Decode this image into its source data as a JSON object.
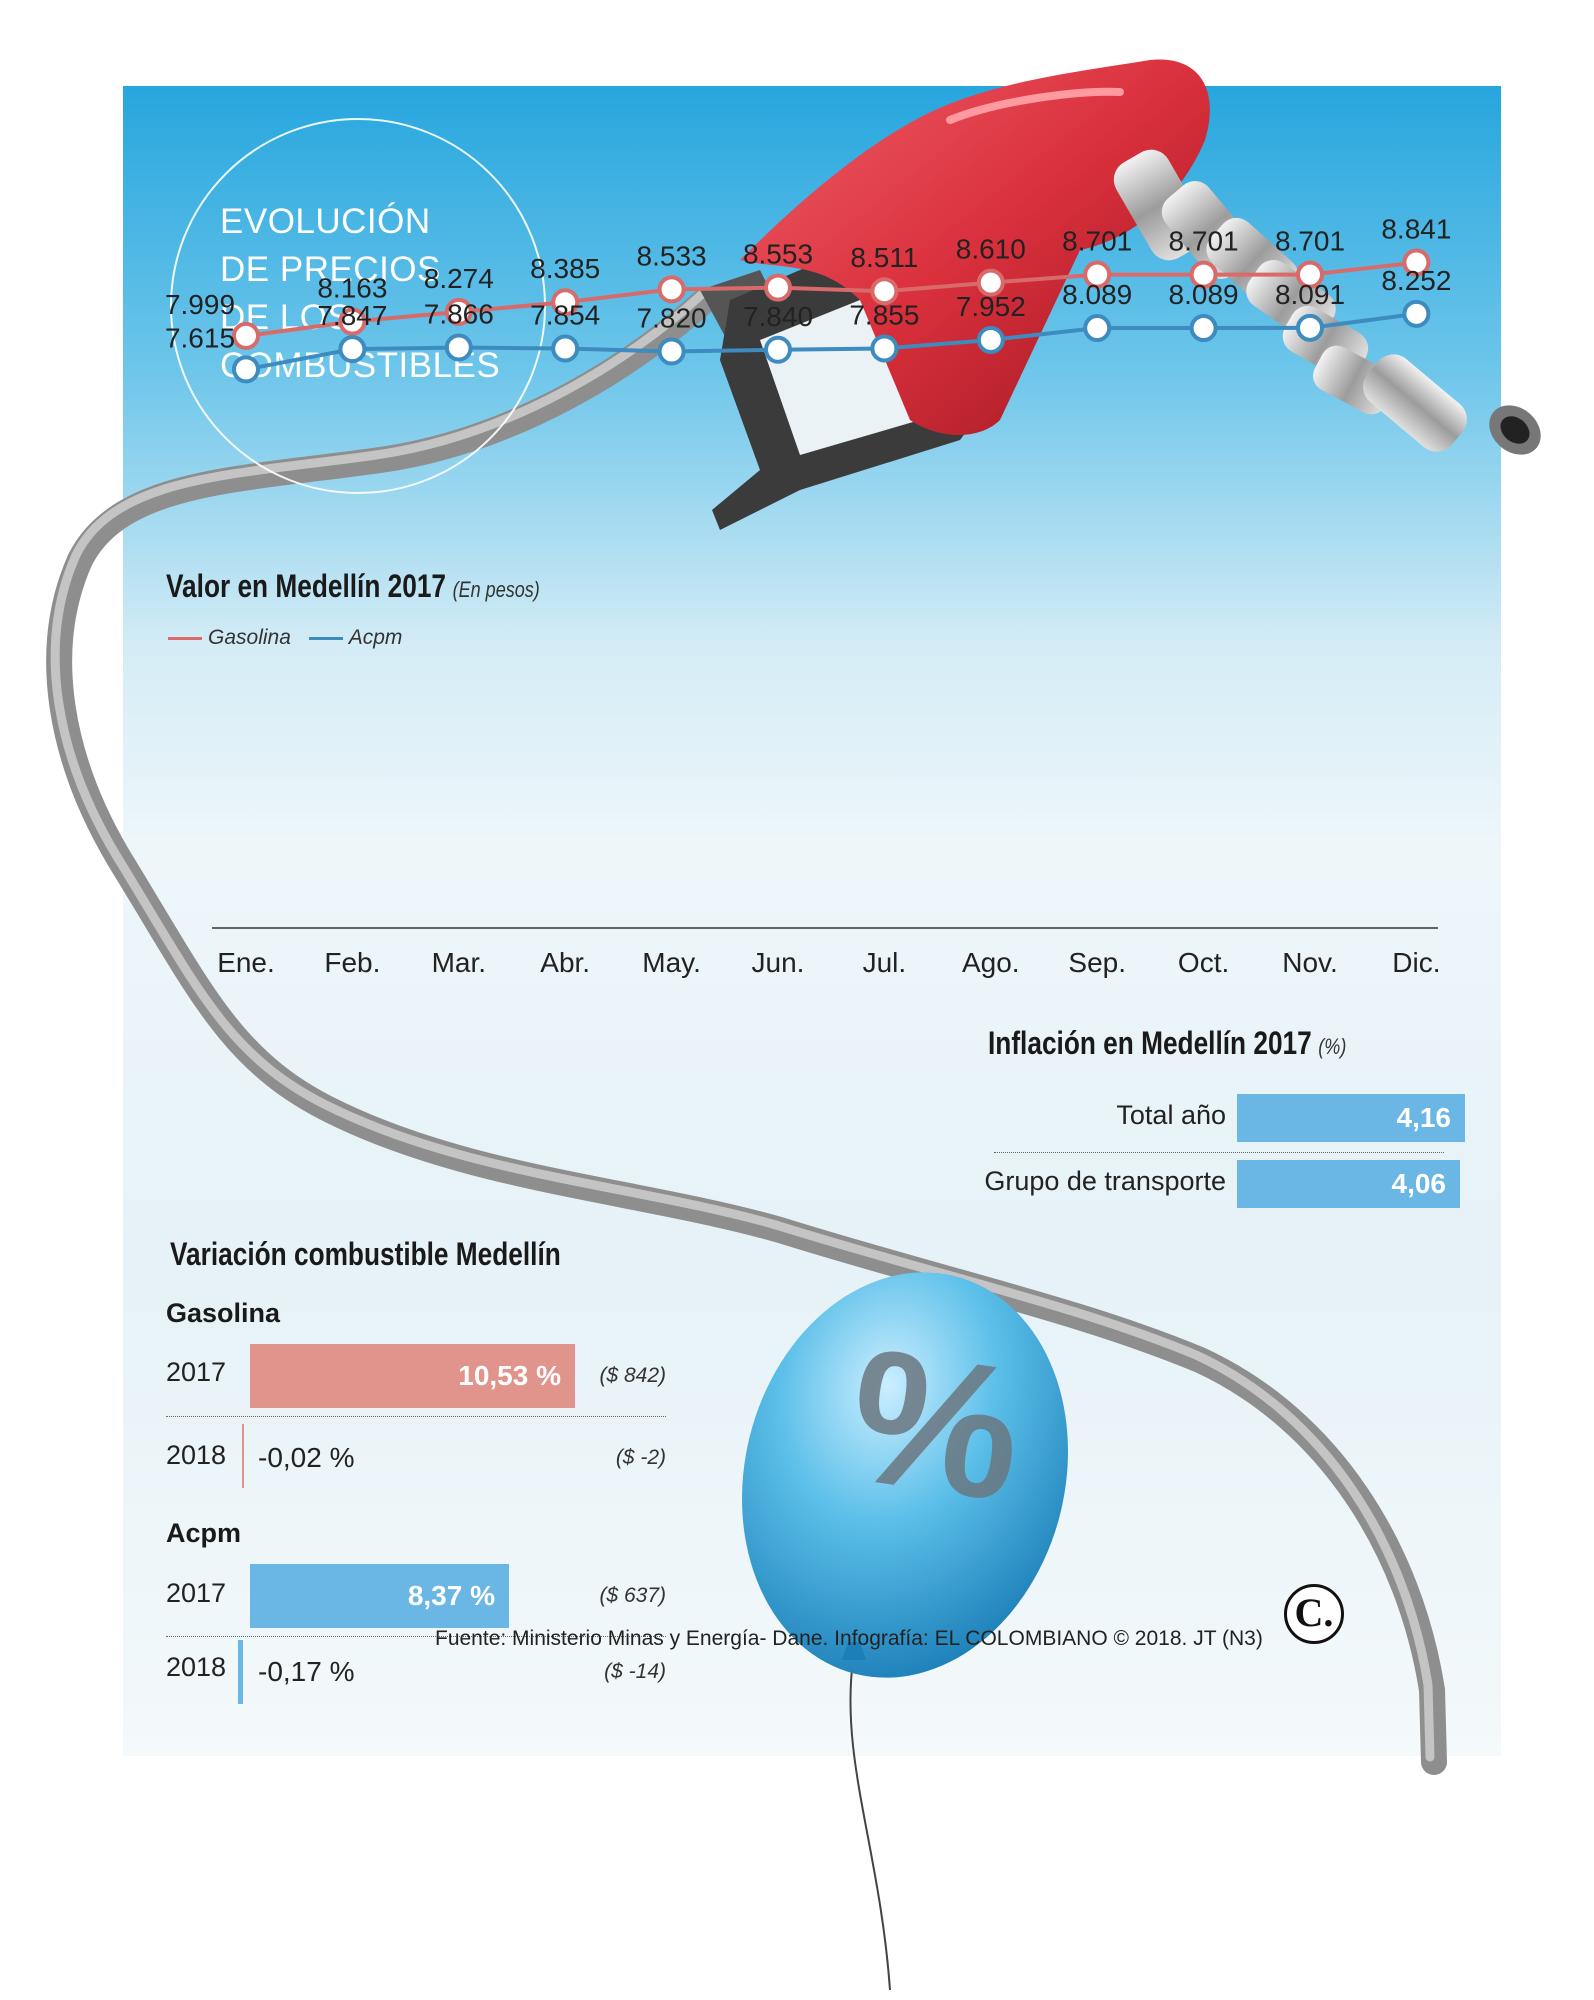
{
  "title_lines": [
    "EVOLUCIÓN",
    "DE PRECIOS",
    "DE LOS",
    "COMBUSTIBLES"
  ],
  "colors": {
    "gasolina": "#d96a6a",
    "acpm": "#3d8bbf",
    "gas_bar": "#e0948b",
    "acpm_bar": "#6ab6e4",
    "infl_bar": "#6ab6e4"
  },
  "chart_data": {
    "type": "line",
    "title": "Valor en Medellín 2017",
    "subtitle": "(En pesos)",
    "categories": [
      "Ene.",
      "Feb.",
      "Mar.",
      "Abr.",
      "May.",
      "Jun.",
      "Jul.",
      "Ago.",
      "Sep.",
      "Oct.",
      "Nov.",
      "Dic."
    ],
    "series": [
      {
        "name": "Gasolina",
        "values": [
          7999,
          8163,
          8274,
          8385,
          8533,
          8553,
          8511,
          8610,
          8701,
          8701,
          8701,
          8841
        ],
        "labels": [
          "7.999",
          "8.163",
          "8.274",
          "8.385",
          "8.533",
          "8.553",
          "8.511",
          "8.610",
          "8.701",
          "8.701",
          "8.701",
          "8.841"
        ]
      },
      {
        "name": "Acpm",
        "values": [
          7615,
          7847,
          7866,
          7854,
          7820,
          7840,
          7855,
          7952,
          8089,
          8089,
          8091,
          8252
        ],
        "labels": [
          "7.615",
          "7.847",
          "7.866",
          "7.854",
          "7.820",
          "7.840",
          "7.855",
          "7.952",
          "8.089",
          "8.089",
          "8.091",
          "8.252"
        ]
      }
    ],
    "legend": "top-left"
  },
  "inflation": {
    "title": "Inflación en Medellín 2017",
    "unit": "(%)",
    "rows": [
      {
        "label": "Total año",
        "value_text": "4,16",
        "value": 4.16
      },
      {
        "label": "Grupo de transporte",
        "value_text": "4,06",
        "value": 4.06
      }
    ]
  },
  "variation": {
    "title": "Variación combustible Medellín",
    "groups": [
      {
        "name": "Gasolina",
        "rows": [
          {
            "year": "2017",
            "value_text": "10,53 %",
            "value": 10.53,
            "pesos": "($ 842)"
          },
          {
            "year": "2018",
            "value_text": "-0,02 %",
            "value": -0.02,
            "pesos": "($ -2)"
          }
        ]
      },
      {
        "name": "Acpm",
        "rows": [
          {
            "year": "2017",
            "value_text": "8,37 %",
            "value": 8.37,
            "pesos": "($ 637)"
          },
          {
            "year": "2018",
            "value_text": "-0,17 %",
            "value": -0.17,
            "pesos": "($ -14)"
          }
        ]
      }
    ]
  },
  "source": "Fuente: Ministerio Minas y Energía- Dane. Infografía: EL COLOMBIANO © 2018. JT (N3)",
  "logo_text": "C.",
  "balloon_symbol": "%"
}
